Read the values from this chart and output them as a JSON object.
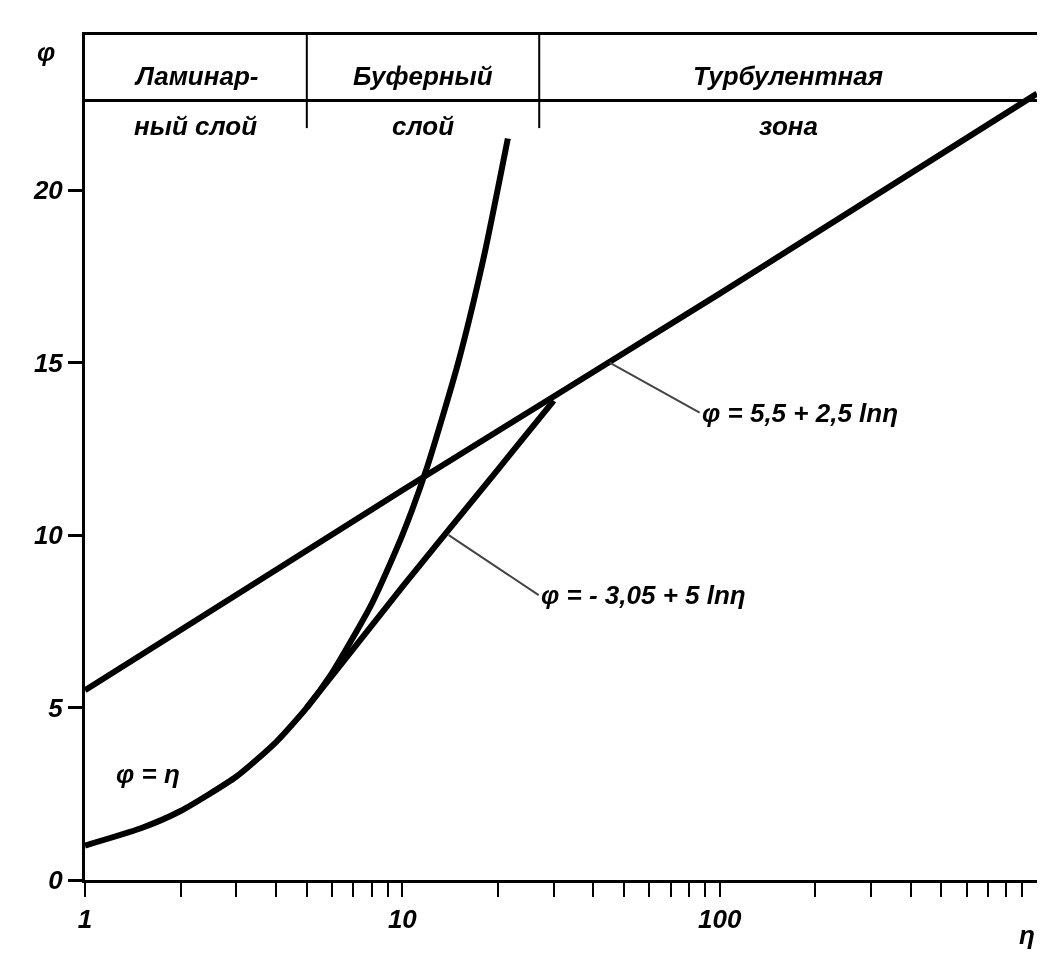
{
  "chart_data": {
    "type": "line",
    "ylabel": "φ",
    "xlabel": "η",
    "log": "x",
    "xlim": [
      1,
      1000
    ],
    "ylim": [
      0,
      24.5
    ],
    "xticks": [
      1,
      {
        "value": 2,
        "label": null
      },
      {
        "value": 3,
        "label": null
      },
      {
        "value": 4,
        "label": null
      },
      {
        "value": 5,
        "label": null
      },
      {
        "value": 6,
        "label": null
      },
      {
        "value": 7,
        "label": null
      },
      {
        "value": 8,
        "label": null
      },
      {
        "value": 9,
        "label": null
      },
      10,
      {
        "value": 20,
        "label": null
      },
      {
        "value": 30,
        "label": null
      },
      {
        "value": 40,
        "label": null
      },
      {
        "value": 50,
        "label": null
      },
      {
        "value": 60,
        "label": null
      },
      {
        "value": 70,
        "label": null
      },
      {
        "value": 80,
        "label": null
      },
      {
        "value": 90,
        "label": null
      },
      100,
      {
        "value": 200,
        "label": null
      },
      {
        "value": 300,
        "label": null
      },
      {
        "value": 400,
        "label": null
      },
      {
        "value": 500,
        "label": null
      },
      {
        "value": 600,
        "label": null
      },
      {
        "value": 700,
        "label": null
      },
      {
        "value": 800,
        "label": null
      },
      {
        "value": 900,
        "label": null
      }
    ],
    "yticks": [
      0,
      5,
      10,
      15,
      20
    ],
    "grid": false,
    "marker": "none",
    "line_style": "solid",
    "series": [
      {
        "color": "#000000",
        "x": [
          1,
          1.5,
          2,
          3,
          4,
          5,
          6,
          8,
          10,
          12,
          15,
          18,
          21.5
        ],
        "values": [
          1,
          1.5,
          2,
          3,
          4,
          5,
          6,
          8,
          10,
          12,
          15,
          18,
          21.5
        ]
      },
      {
        "color": "#000000",
        "x": [
          1,
          10,
          100,
          1000
        ],
        "values": [
          5.5,
          11.3,
          17,
          22.8
        ]
      },
      {
        "color": "#000000",
        "x": [
          5,
          10,
          20,
          30
        ],
        "values": [
          5,
          8.5,
          11.9,
          13.9
        ]
      }
    ],
    "ref_lines": [
      {
        "axis": "y",
        "value": 22.6
      },
      {
        "axis": "x",
        "value": 5
      },
      {
        "axis": "x",
        "value": 27
      }
    ],
    "annotations": [
      "Ламинар-\nный слой",
      "Буферный\nслой",
      "Турбулентная\nзона",
      {
        "text": "φ = 5,5 + 2,5 lnη",
        "x": 45,
        "y": 15
      },
      {
        "text": "φ = - 3,05 + 5 lnη",
        "x": 14,
        "y": 10
      },
      {
        "text": "φ = η",
        "x": 1.9,
        "y": 1.9
      }
    ]
  }
}
